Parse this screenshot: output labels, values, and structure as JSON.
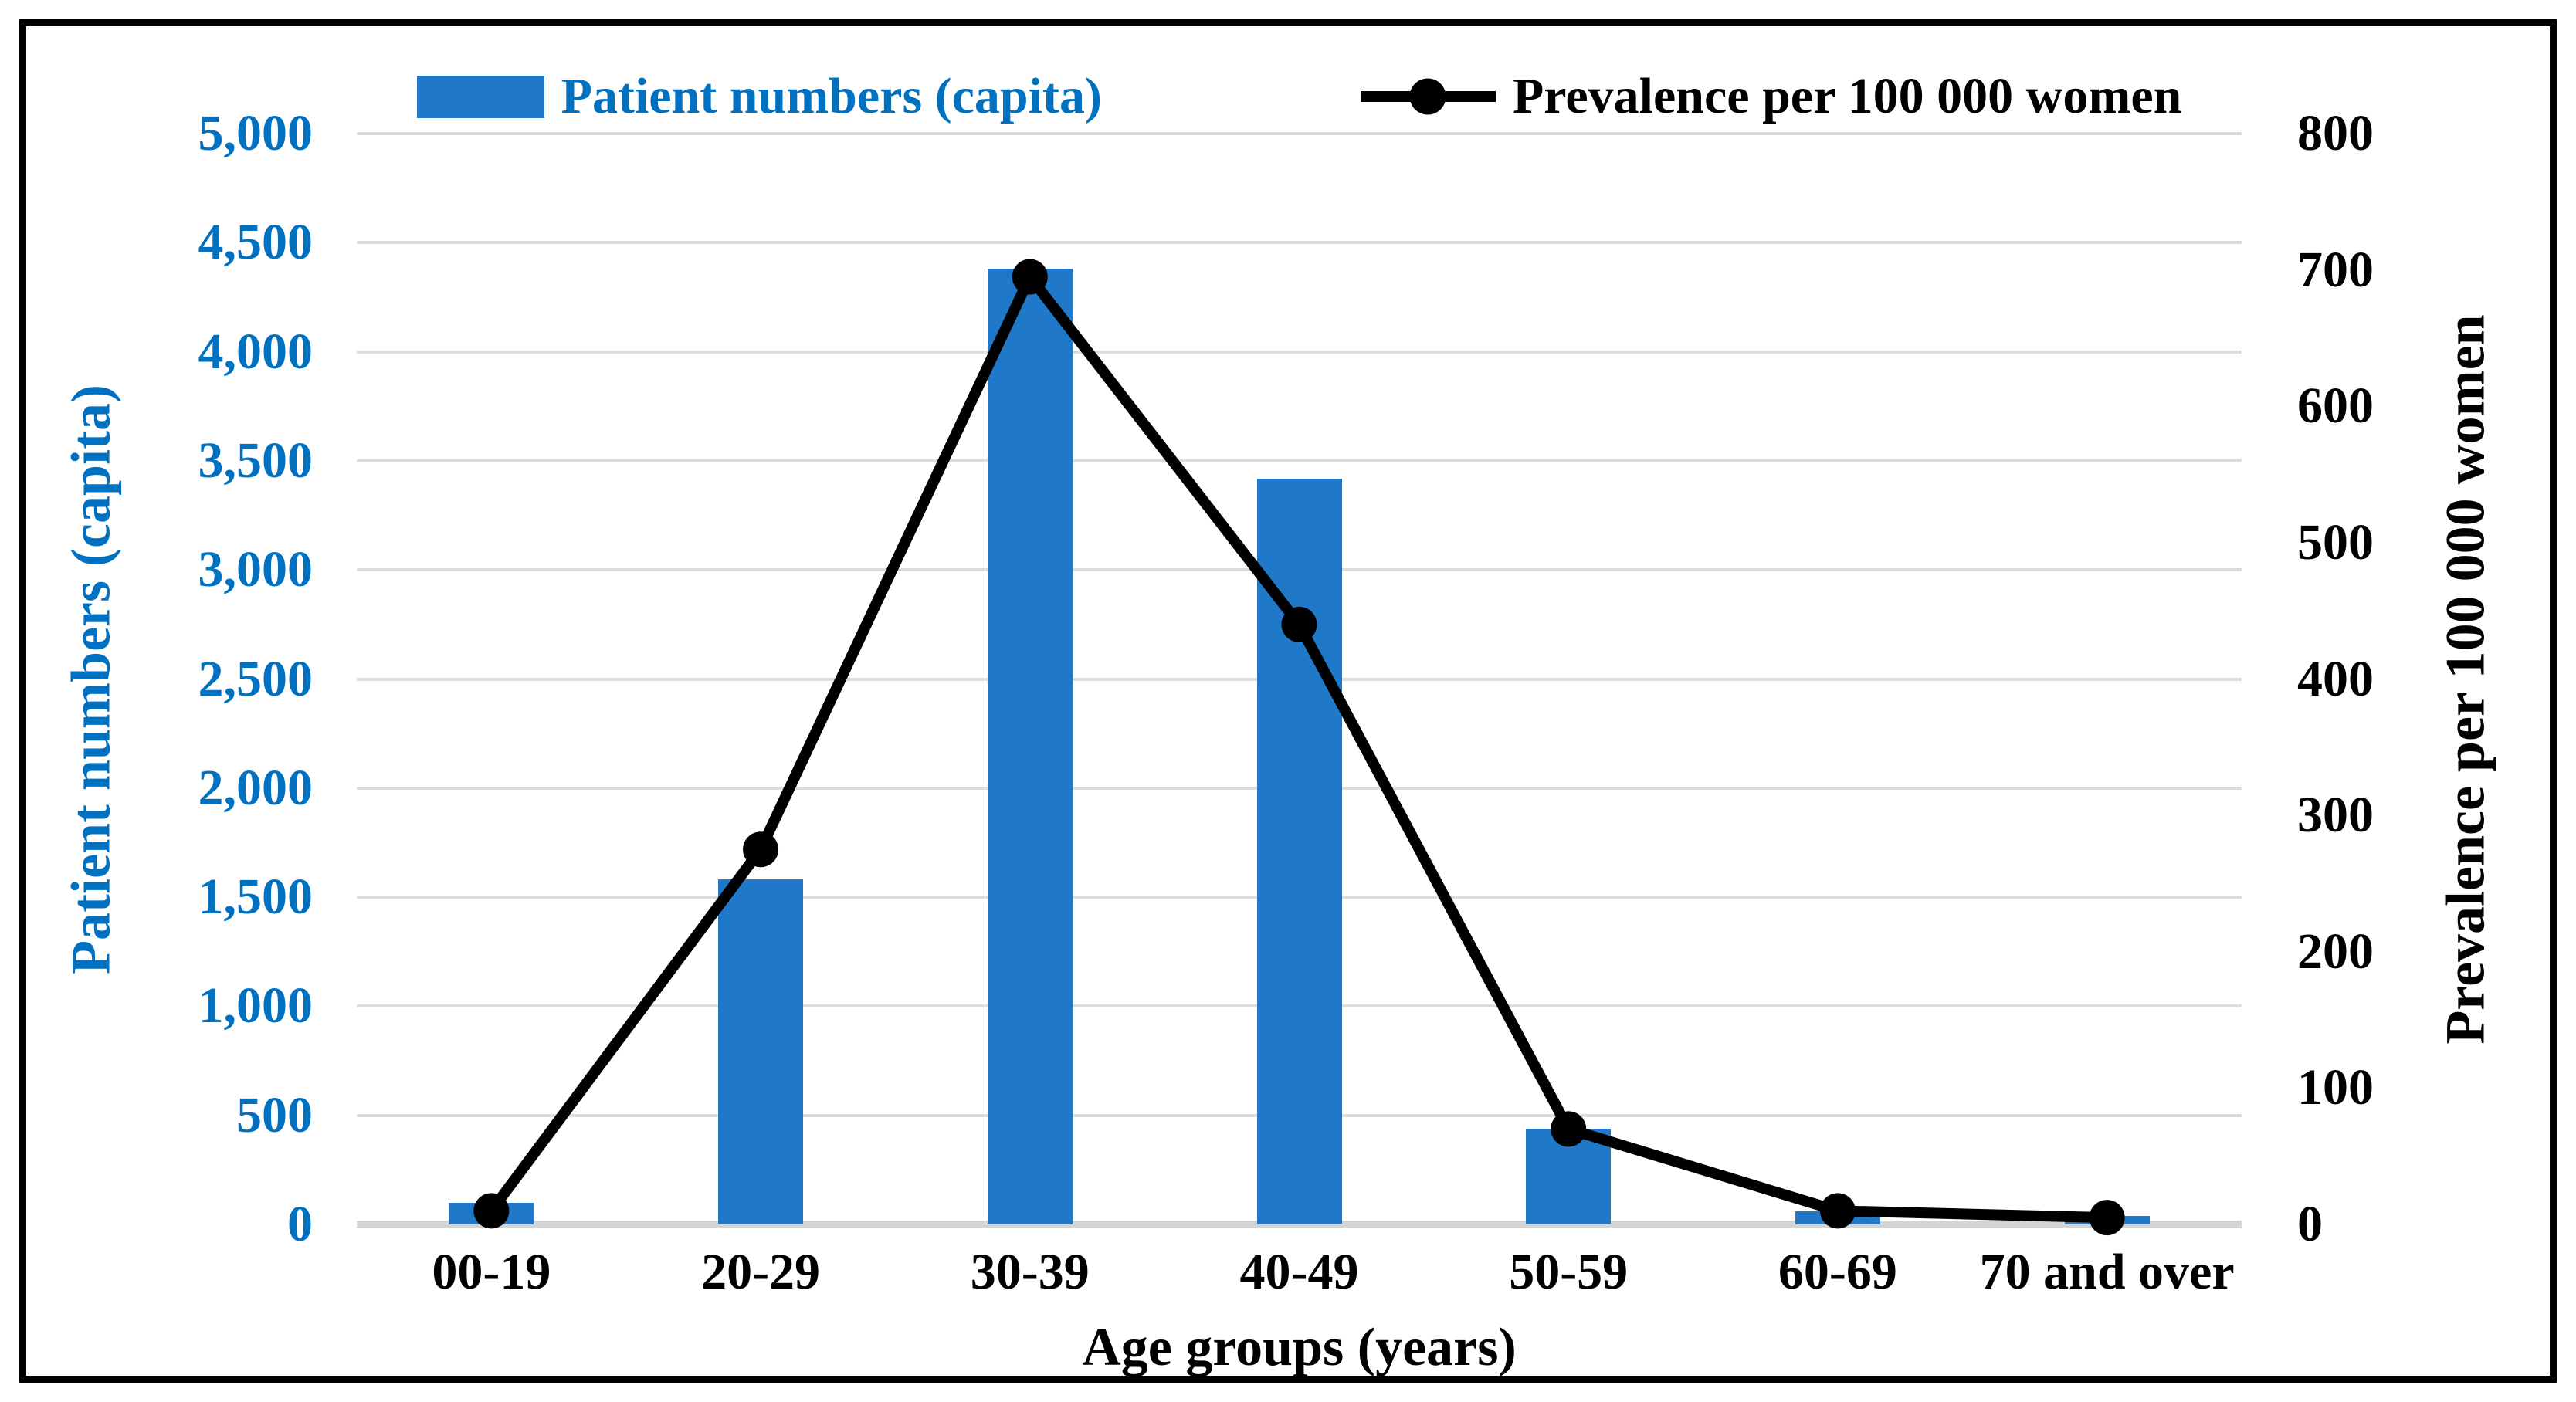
{
  "chart_data": {
    "type": "combo bar+line",
    "categories": [
      "00-19",
      "20-29",
      "30-39",
      "40-49",
      "50-59",
      "60-69",
      "70 and over"
    ],
    "series": [
      {
        "name": "Patient numbers (capita)",
        "type": "bar",
        "y_axis": "left",
        "color": "#1F78C8",
        "values": [
          100,
          1580,
          4380,
          3420,
          440,
          60,
          40
        ]
      },
      {
        "name": "Prevalence per 100 000 women",
        "type": "line",
        "y_axis": "right",
        "color": "#000000",
        "marker": "circle",
        "values": [
          10,
          275,
          695,
          440,
          70,
          10,
          5
        ]
      }
    ],
    "x_axis": {
      "title": "Age groups (years)"
    },
    "left_axis": {
      "title": "Patient numbers (capita)",
      "color": "#0070C0",
      "min": 0,
      "max": 5000,
      "step": 500,
      "tick_labels": [
        "0",
        "500",
        "1,000",
        "1,500",
        "2,000",
        "2,500",
        "3,000",
        "3,500",
        "4,000",
        "4,500",
        "5,000"
      ]
    },
    "right_axis": {
      "title": "Prevalence per 100 000 women",
      "color": "#000000",
      "min": 0,
      "max": 800,
      "step": 100,
      "tick_labels": [
        "0",
        "100",
        "200",
        "300",
        "400",
        "500",
        "600",
        "700",
        "800"
      ]
    },
    "legend_position": "top",
    "grid": true
  }
}
